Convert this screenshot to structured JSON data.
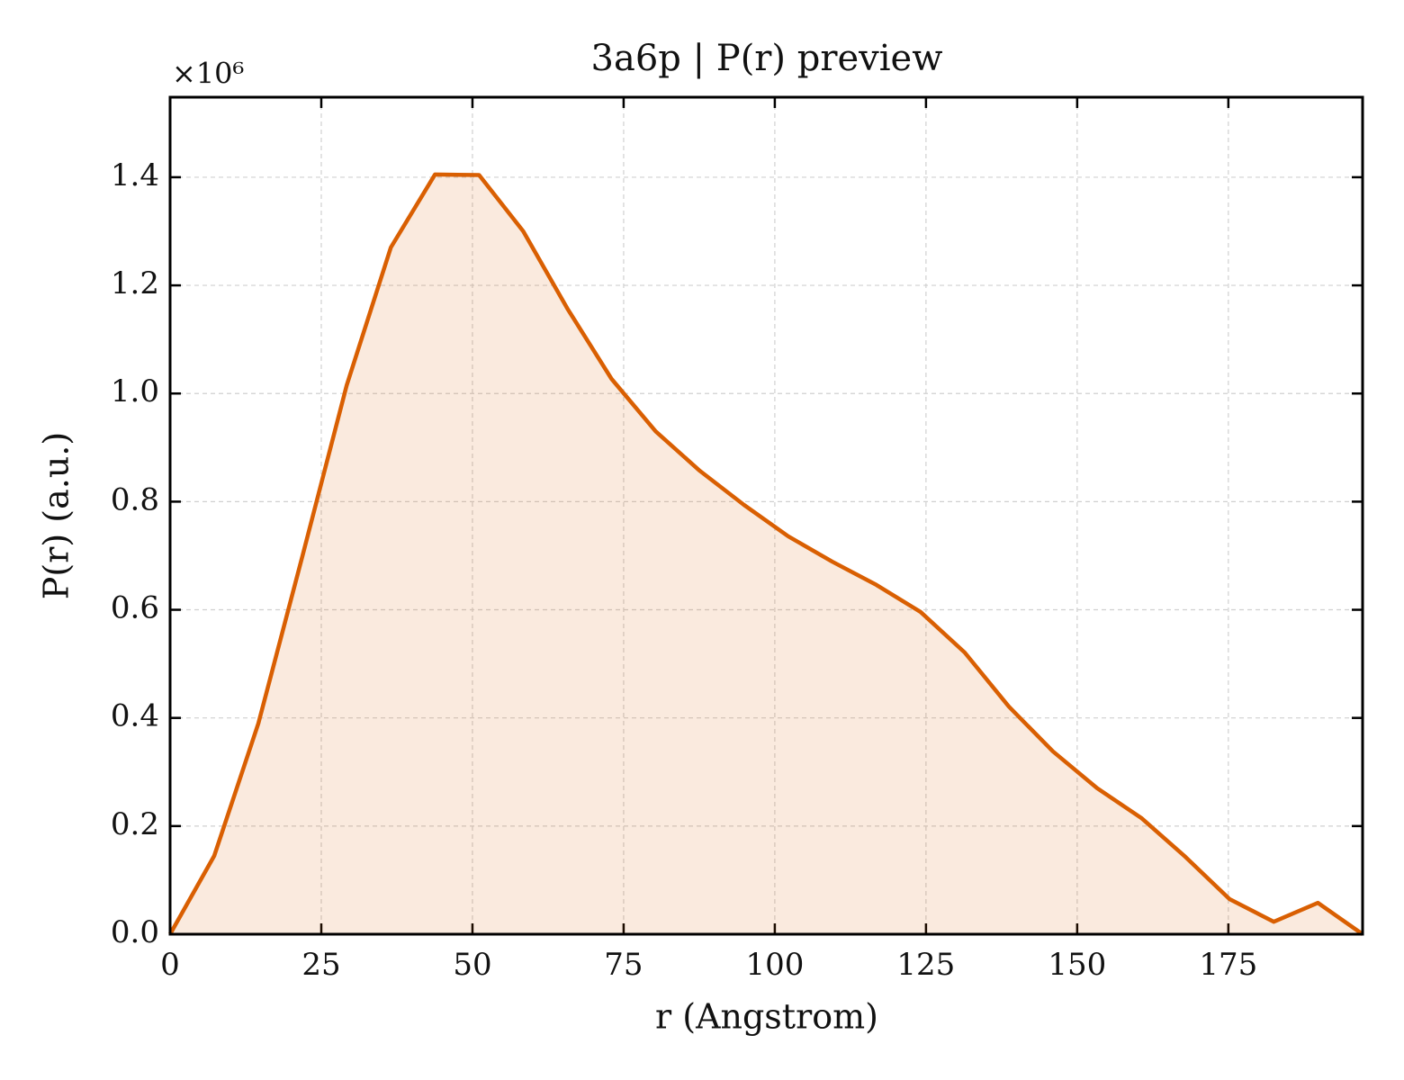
{
  "chart_data": {
    "type": "area",
    "title": "3a6p | P(r) preview",
    "x_label": "r (Angstrom)",
    "y_label": "P(r) (a.u.)",
    "y_multiplier": "×10⁶",
    "x": [
      0,
      7.3,
      14.6,
      21.9,
      29.2,
      36.5,
      43.8,
      51.1,
      58.4,
      65.7,
      73,
      80.3,
      87.6,
      94.9,
      102.2,
      109.5,
      116.8,
      124.1,
      131.4,
      138.7,
      146,
      153.3,
      160.6,
      167.9,
      175.2,
      182.5,
      189.8,
      197.2
    ],
    "series": [
      {
        "color": "#d95f02",
        "values": [
          0,
          0.145,
          0.39,
          0.7,
          1.015,
          1.27,
          1.405,
          1.404,
          1.3,
          1.157,
          1.027,
          0.93,
          0.857,
          0.794,
          0.736,
          0.689,
          0.646,
          0.596,
          0.521,
          0.421,
          0.338,
          0.27,
          0.215,
          0.143,
          0.065,
          0.023,
          0.058,
          0
        ]
      }
    ],
    "xlim": [
      0,
      197.2
    ],
    "ylim": [
      0,
      1.548
    ],
    "xticks": [
      0,
      25,
      50,
      75,
      100,
      125,
      150,
      175
    ],
    "yticks": [
      {
        "value": 0,
        "label": "0.0"
      },
      {
        "value": 0.2,
        "label": "0.2"
      },
      {
        "value": 0.4,
        "label": "0.4"
      },
      {
        "value": 0.6,
        "label": "0.6"
      },
      {
        "value": 0.8,
        "label": "0.8"
      },
      {
        "value": 1.0,
        "label": "1.0"
      },
      {
        "value": 1.2,
        "label": "1.2"
      },
      {
        "value": 1.4,
        "label": "1.4"
      }
    ],
    "grid": true,
    "fill_opacity": 0.13
  }
}
